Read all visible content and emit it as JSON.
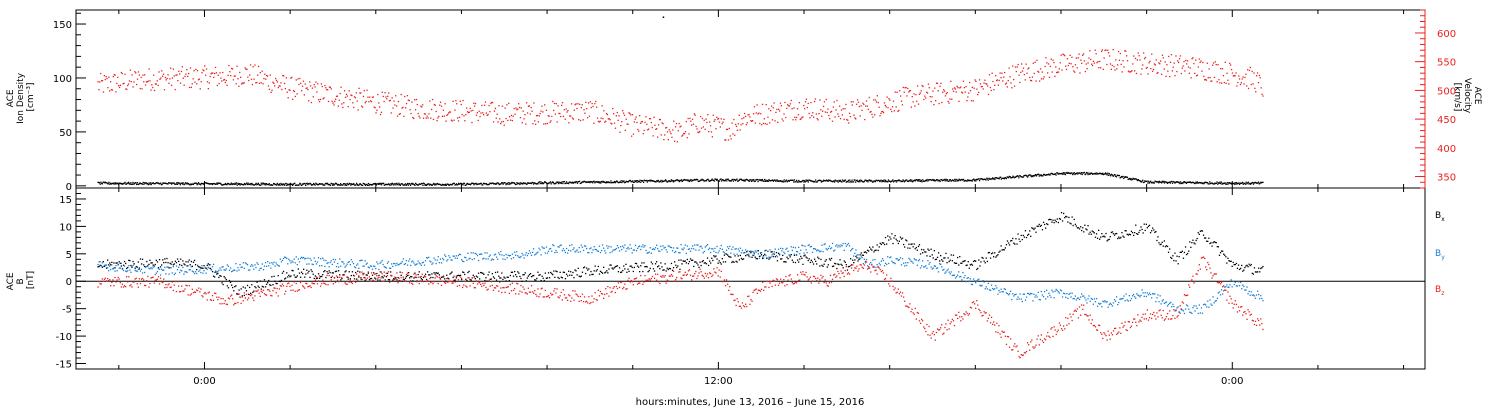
{
  "chart_data": [
    {
      "type": "scatter",
      "panel": "top",
      "left_axis": {
        "label_lines": [
          "ACE",
          "Ion Density",
          "[cm⁻³]"
        ],
        "ticks": [
          0,
          50,
          100,
          150
        ],
        "range": [
          -2,
          163
        ],
        "color": "#000000"
      },
      "right_axis": {
        "label_lines": [
          "ACE",
          "Velocity",
          "[km/s]"
        ],
        "ticks": [
          350,
          400,
          450,
          500,
          550,
          600
        ],
        "range": [
          330,
          640
        ],
        "color": "#e8211f"
      },
      "series": [
        {
          "color": "#e8211f",
          "axis": "right",
          "noise": 20,
          "x": [
            -2.5,
            -1.5,
            0.5,
            1.0,
            2,
            4,
            5,
            7,
            9,
            10,
            11.0,
            11.05,
            11.5,
            12.3,
            12.5,
            13,
            14,
            15,
            16.5,
            18,
            19,
            20,
            21,
            22,
            23,
            24,
            24.5,
            24.7
          ],
          "y": [
            510,
            520,
            525,
            530,
            505,
            480,
            470,
            460,
            465,
            440,
            430,
            425,
            445,
            432,
            452,
            460,
            472,
            462,
            490,
            503,
            530,
            545,
            555,
            548,
            542,
            530,
            520,
            505
          ]
        },
        {
          "color": "#000000",
          "axis": "left",
          "noise": 1,
          "x": [
            -2.5,
            2,
            6,
            9,
            12,
            14,
            16,
            18,
            20,
            21,
            22,
            24,
            24.7
          ],
          "y": [
            3,
            2,
            2,
            4,
            6,
            5,
            5,
            6,
            12,
            12,
            4,
            3,
            3
          ]
        }
      ],
      "outlier": {
        "x": 10.7,
        "y": 157,
        "axis": "left"
      }
    },
    {
      "type": "scatter",
      "panel": "bottom",
      "left_axis": {
        "label_lines": [
          "ACE",
          "B",
          "[nT]"
        ],
        "ticks": [
          -15,
          -10,
          -5,
          0,
          5,
          10,
          15
        ],
        "range": [
          -16,
          17
        ],
        "color": "#000000"
      },
      "zero_line": true,
      "series": [
        {
          "name": "Bx",
          "legend_main": "B",
          "legend_sub": "x",
          "color": "#000000",
          "noise": 0.9,
          "x": [
            -2.5,
            -1,
            0,
            0.8,
            2,
            4,
            6,
            8,
            9,
            10,
            11,
            12,
            13,
            14,
            15,
            16,
            17,
            18,
            19,
            20,
            21,
            22,
            22.7,
            23.3,
            24,
            24.7
          ],
          "y": [
            3,
            3.5,
            3,
            -2,
            1.5,
            1,
            1,
            1,
            2,
            2.5,
            3,
            4,
            5,
            4,
            3,
            8,
            5,
            3,
            8,
            12,
            8,
            10,
            4,
            9,
            3,
            2
          ]
        },
        {
          "name": "By",
          "legend_main": "B",
          "legend_sub": "y",
          "color": "#1a7fd4",
          "noise": 0.8,
          "x": [
            -2.5,
            -1,
            0.5,
            1.5,
            2,
            4,
            6,
            7.5,
            8,
            10,
            12,
            13,
            14,
            15,
            15.5,
            16,
            17,
            18,
            19,
            20,
            21,
            22,
            22.7,
            23.3,
            24,
            24.7
          ],
          "y": [
            3,
            2,
            2.5,
            3,
            4,
            3,
            4.5,
            5,
            6,
            6,
            6,
            5,
            6,
            6.5,
            3,
            4,
            3,
            0,
            -3,
            -2,
            -4,
            -2,
            -5,
            -5,
            0,
            -3
          ]
        },
        {
          "name": "Bz",
          "legend_main": "B",
          "legend_sub": "z",
          "color": "#e8211f",
          "noise": 1.0,
          "x": [
            -2.5,
            -1,
            0.5,
            1.5,
            2.5,
            4,
            6,
            8,
            9,
            10,
            11,
            12,
            12.5,
            13,
            14,
            14.5,
            15,
            15.5,
            16,
            17,
            18,
            19,
            20,
            20.5,
            21,
            22,
            22.7,
            23.3,
            24,
            24.7
          ],
          "y": [
            0,
            0,
            -3.5,
            -2,
            0,
            1,
            0,
            -2,
            -3,
            0,
            1,
            2,
            -5,
            -1,
            1,
            0,
            2,
            3,
            0,
            -10,
            -4,
            -13,
            -8,
            -5,
            -10,
            -6,
            -6,
            4,
            -4,
            -8
          ]
        }
      ]
    }
  ],
  "x_axis": {
    "label": "hours:minutes, June 13, 2016 – June 15, 2016",
    "range": [
      -3,
      28.5
    ],
    "ticks": [
      {
        "x": 0,
        "label": "0:00"
      },
      {
        "x": 12,
        "label": "12:00"
      },
      {
        "x": 24,
        "label": "0:00"
      }
    ],
    "minor_step": 2
  }
}
